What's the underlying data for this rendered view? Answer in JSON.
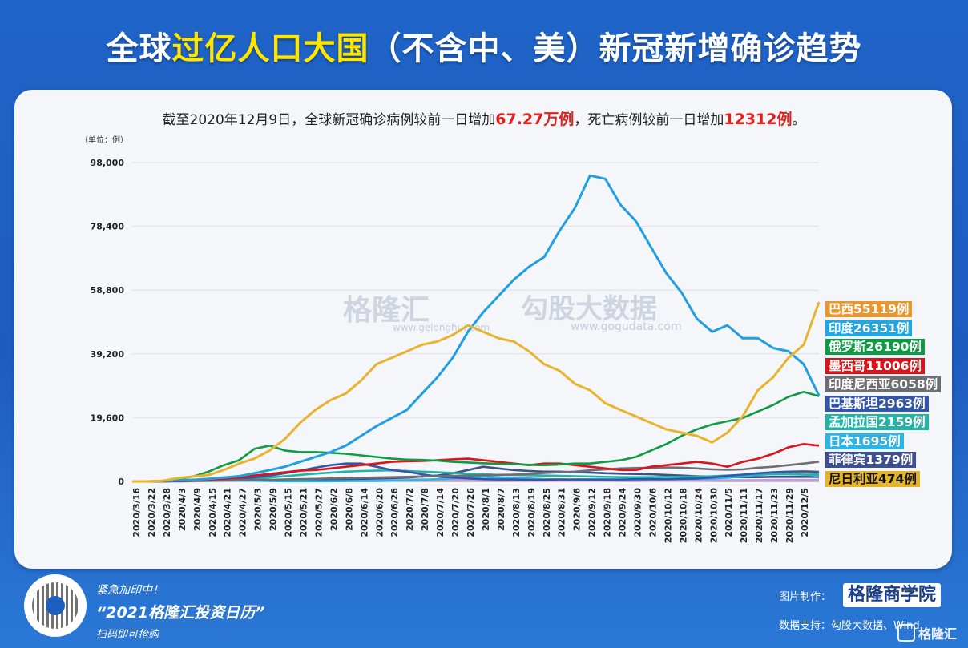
{
  "title_part1": "全球",
  "title_part2": "过亿人口大国",
  "title_part3": "（不含中、美）新冠新增确诊趋势",
  "subtitle": {
    "prefix": "截至2020年12月9日，全球新冠确诊病例较前一日增加",
    "cases": "67.27万例",
    "middle": "，死亡病例较前一日增加",
    "deaths": "12312例",
    "suffix": "。"
  },
  "unit_label": "（单位：例）",
  "watermark": {
    "left": "格隆汇",
    "left_url": "www.gelonghui.com",
    "right": "勾股大数据",
    "right_url": "www.gogudata.com"
  },
  "legend": [
    {
      "label": "巴西55119例",
      "color": "#e8972e",
      "text": "light"
    },
    {
      "label": "印度26351例",
      "color": "#20a6e4",
      "text": "light"
    },
    {
      "label": "俄罗斯26190例",
      "color": "#0f9a45",
      "text": "light"
    },
    {
      "label": "墨西哥11006例",
      "color": "#d9151b",
      "text": "light"
    },
    {
      "label": "印度尼西亚6058例",
      "color": "#6d6e73",
      "text": "light"
    },
    {
      "label": "巴基斯坦2963例",
      "color": "#3556a8",
      "text": "light"
    },
    {
      "label": "孟加拉国2159例",
      "color": "#22b3a5",
      "text": "light"
    },
    {
      "label": "日本1695例",
      "color": "#2cb4e6",
      "text": "light"
    },
    {
      "label": "菲律宾1379例",
      "color": "#3e4f8d",
      "text": "light"
    },
    {
      "label": "尼日利亚474例",
      "color": "#e4b52a",
      "text": "dark"
    }
  ],
  "promo": {
    "line1": "紧急加印中！",
    "line2": "“2021格隆汇投资日历”",
    "line3": "扫码即可抢购"
  },
  "credit": {
    "made_by_label": "图片制作：",
    "brand": "格隆商学院",
    "data_label": "数据支持：勾股大数据、Wind",
    "logo": "格隆汇"
  },
  "colors": {
    "background": "#1f64c8",
    "highlight": "#ffe600",
    "red": "#e2201c"
  },
  "chart_data": {
    "type": "line",
    "ylim": [
      0,
      98000
    ],
    "yticks": [
      0,
      19600,
      39200,
      58800,
      78400,
      98000
    ],
    "ytick_labels": [
      "0",
      "19,600",
      "39,200",
      "58,800",
      "78,400",
      "98,000"
    ],
    "x_ticks": [
      "2020/3/16",
      "2020/3/22",
      "2020/3/28",
      "2020/4/3",
      "2020/4/9",
      "2020/4/15",
      "2020/4/21",
      "2020/4/27",
      "2020/5/3",
      "2020/5/9",
      "2020/5/15",
      "2020/5/21",
      "2020/5/27",
      "2020/6/2",
      "2020/6/8",
      "2020/6/14",
      "2020/6/20",
      "2020/6/26",
      "2020/7/2",
      "2020/7/8",
      "2020/7/14",
      "2020/7/20",
      "2020/7/26",
      "2020/8/1",
      "2020/8/7",
      "2020/8/13",
      "2020/8/19",
      "2020/8/25",
      "2020/8/31",
      "2020/9/6",
      "2020/9/12",
      "2020/9/18",
      "2020/9/24",
      "2020/9/30",
      "2020/10/6",
      "2020/10/12",
      "2020/10/18",
      "2020/10/24",
      "2020/10/30",
      "2020/11/5",
      "2020/11/11",
      "2020/11/17",
      "2020/11/23",
      "2020/11/29",
      "2020/12/5"
    ],
    "series": [
      {
        "name": "巴西",
        "color": "#e8b42e",
        "values": [
          0,
          0,
          200,
          1000,
          1500,
          2000,
          3500,
          5500,
          7000,
          9500,
          13000,
          18000,
          22000,
          25000,
          27000,
          31000,
          36000,
          38000,
          40000,
          42000,
          43000,
          45000,
          48000,
          46000,
          44000,
          43000,
          40000,
          36000,
          34000,
          30000,
          28000,
          24000,
          22000,
          20000,
          18000,
          16000,
          15000,
          14000,
          12000,
          15000,
          20000,
          28000,
          32000,
          38000,
          42000,
          55119
        ]
      },
      {
        "name": "印度",
        "color": "#20a0e0",
        "values": [
          0,
          0,
          100,
          300,
          500,
          800,
          1200,
          1600,
          2500,
          3500,
          4500,
          6000,
          7500,
          9000,
          11000,
          14000,
          17000,
          19500,
          22000,
          27000,
          32000,
          38000,
          46000,
          52000,
          57000,
          62000,
          66000,
          69000,
          77000,
          84000,
          94000,
          93000,
          85000,
          80000,
          72000,
          64000,
          58000,
          50000,
          46000,
          48000,
          44000,
          44000,
          41000,
          40000,
          36000,
          26351
        ]
      },
      {
        "name": "俄罗斯",
        "color": "#0f9a45",
        "values": [
          0,
          0,
          200,
          700,
          1500,
          3000,
          5000,
          6500,
          10000,
          11000,
          9500,
          9000,
          9000,
          8800,
          8500,
          8000,
          7500,
          7000,
          6700,
          6600,
          6400,
          6000,
          5800,
          5600,
          5400,
          5300,
          5100,
          5000,
          5200,
          5500,
          5500,
          6000,
          6500,
          7500,
          9500,
          11500,
          14000,
          16000,
          17500,
          18500,
          19500,
          21500,
          23500,
          26000,
          27500,
          26190
        ]
      },
      {
        "name": "墨西哥",
        "color": "#d9151b",
        "values": [
          0,
          0,
          0,
          100,
          300,
          600,
          800,
          1200,
          1800,
          2300,
          2800,
          3300,
          3500,
          4000,
          4500,
          5000,
          5500,
          6000,
          6200,
          6300,
          6500,
          6800,
          7000,
          6500,
          6000,
          5500,
          5000,
          5500,
          5500,
          5000,
          4500,
          4000,
          3500,
          3500,
          4500,
          5000,
          5500,
          6000,
          5500,
          4500,
          6000,
          7000,
          8500,
          10500,
          11500,
          11006
        ]
      },
      {
        "name": "印度尼西亚",
        "color": "#6d6e73",
        "values": [
          0,
          0,
          0,
          100,
          200,
          300,
          400,
          400,
          500,
          500,
          600,
          700,
          800,
          900,
          1000,
          1100,
          1200,
          1300,
          1400,
          1500,
          1600,
          1700,
          1800,
          1900,
          2000,
          2100,
          2300,
          2600,
          2800,
          3000,
          3400,
          3700,
          4000,
          4100,
          4200,
          4300,
          4200,
          4000,
          3700,
          3600,
          3700,
          4200,
          4500,
          5000,
          5500,
          6058
        ]
      },
      {
        "name": "巴基斯坦",
        "color": "#3556a8",
        "values": [
          0,
          0,
          100,
          200,
          300,
          400,
          600,
          800,
          1200,
          1800,
          2500,
          3300,
          4200,
          5000,
          5500,
          5500,
          4500,
          3500,
          3000,
          2200,
          1500,
          1200,
          900,
          700,
          600,
          600,
          500,
          500,
          600,
          600,
          600,
          600,
          600,
          700,
          700,
          700,
          800,
          900,
          1200,
          1700,
          2100,
          2500,
          2800,
          3000,
          3100,
          2963
        ]
      },
      {
        "name": "孟加拉国",
        "color": "#22b3a5",
        "values": [
          0,
          0,
          0,
          0,
          100,
          200,
          400,
          600,
          800,
          1200,
          1600,
          2000,
          2400,
          2700,
          3000,
          3200,
          3300,
          3400,
          3200,
          3000,
          2800,
          2600,
          2400,
          2200,
          2000,
          2000,
          1900,
          1800,
          1700,
          1600,
          1500,
          1400,
          1300,
          1300,
          1300,
          1400,
          1400,
          1500,
          1600,
          1800,
          2000,
          2100,
          2200,
          2200,
          2100,
          2159
        ]
      },
      {
        "name": "日本",
        "color": "#2cb4e6",
        "values": [
          0,
          0,
          100,
          200,
          400,
          500,
          400,
          300,
          200,
          100,
          50,
          50,
          50,
          50,
          100,
          100,
          100,
          200,
          300,
          500,
          700,
          900,
          1200,
          1400,
          1200,
          1000,
          900,
          700,
          600,
          500,
          500,
          500,
          500,
          550,
          600,
          650,
          700,
          750,
          850,
          1100,
          1500,
          2000,
          2300,
          2300,
          2100,
          1695
        ]
      },
      {
        "name": "菲律宾",
        "color": "#3e4f8d",
        "values": [
          0,
          0,
          100,
          200,
          300,
          300,
          300,
          300,
          300,
          300,
          300,
          400,
          500,
          600,
          700,
          800,
          900,
          1000,
          1200,
          1500,
          1800,
          2500,
          3500,
          4500,
          4000,
          3500,
          3200,
          3000,
          3000,
          2800,
          2700,
          2500,
          2400,
          2300,
          2200,
          2000,
          1800,
          1600,
          1500,
          1400,
          1300,
          1300,
          1400,
          1400,
          1400,
          1379
        ]
      },
      {
        "name": "尼日利亚",
        "color": "#c69ad6",
        "values": [
          0,
          0,
          0,
          0,
          50,
          100,
          150,
          200,
          250,
          300,
          350,
          400,
          450,
          500,
          550,
          600,
          650,
          700,
          650,
          600,
          550,
          500,
          450,
          400,
          350,
          300,
          250,
          250,
          200,
          200,
          200,
          200,
          150,
          150,
          200,
          200,
          200,
          250,
          300,
          350,
          400,
          400,
          450,
          450,
          450,
          474
        ]
      }
    ]
  }
}
